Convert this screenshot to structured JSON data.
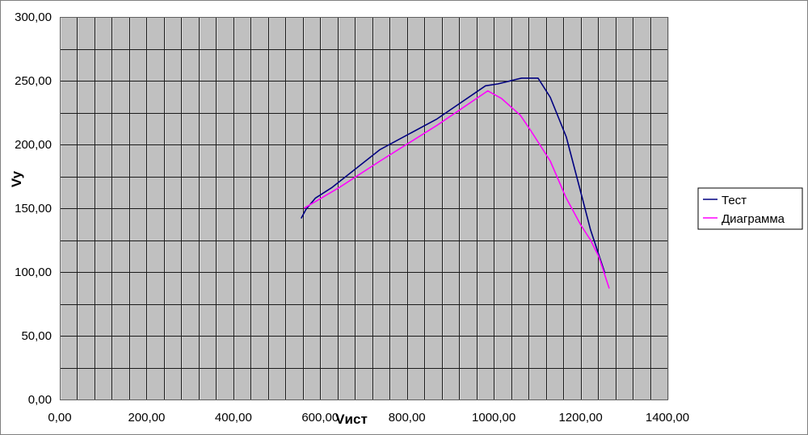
{
  "chart_data": {
    "type": "line",
    "title": "",
    "xlabel": "Vист",
    "ylabel": "Vy",
    "xlim": [
      0,
      1400
    ],
    "ylim": [
      0,
      300
    ],
    "x_major_step": 200,
    "x_minor_step": 40,
    "y_major_step": 50,
    "y_minor_step": 25,
    "x_tick_labels": [
      "0,00",
      "200,00",
      "400,00",
      "600,00",
      "800,00",
      "1000,00",
      "1200,00",
      "1400,00"
    ],
    "y_tick_labels": [
      "0,00",
      "50,00",
      "100,00",
      "150,00",
      "200,00",
      "250,00",
      "300,00"
    ],
    "grid": true,
    "plot_background": "#c0c0c0",
    "legend_position": "right",
    "series": [
      {
        "name": "Тест",
        "color": "#000080",
        "points": [
          [
            556,
            142
          ],
          [
            567,
            149
          ],
          [
            589,
            158
          ],
          [
            626,
            166
          ],
          [
            738,
            196
          ],
          [
            869,
            220
          ],
          [
            981,
            246
          ],
          [
            1009,
            247.5
          ],
          [
            1064,
            252
          ],
          [
            1102,
            252
          ],
          [
            1130,
            237
          ],
          [
            1167,
            206
          ],
          [
            1200,
            163
          ],
          [
            1223,
            133
          ],
          [
            1256,
            99
          ]
        ]
      },
      {
        "name": "Диаграмма",
        "color": "#ff00ff",
        "points": [
          [
            563,
            150
          ],
          [
            645,
            166.5
          ],
          [
            738,
            187
          ],
          [
            869,
            215
          ],
          [
            986,
            242
          ],
          [
            1018,
            236
          ],
          [
            1061,
            223
          ],
          [
            1083,
            212
          ],
          [
            1130,
            187
          ],
          [
            1167,
            158
          ],
          [
            1200,
            137
          ],
          [
            1223,
            125
          ],
          [
            1242,
            112
          ],
          [
            1266,
            87
          ]
        ]
      }
    ]
  }
}
